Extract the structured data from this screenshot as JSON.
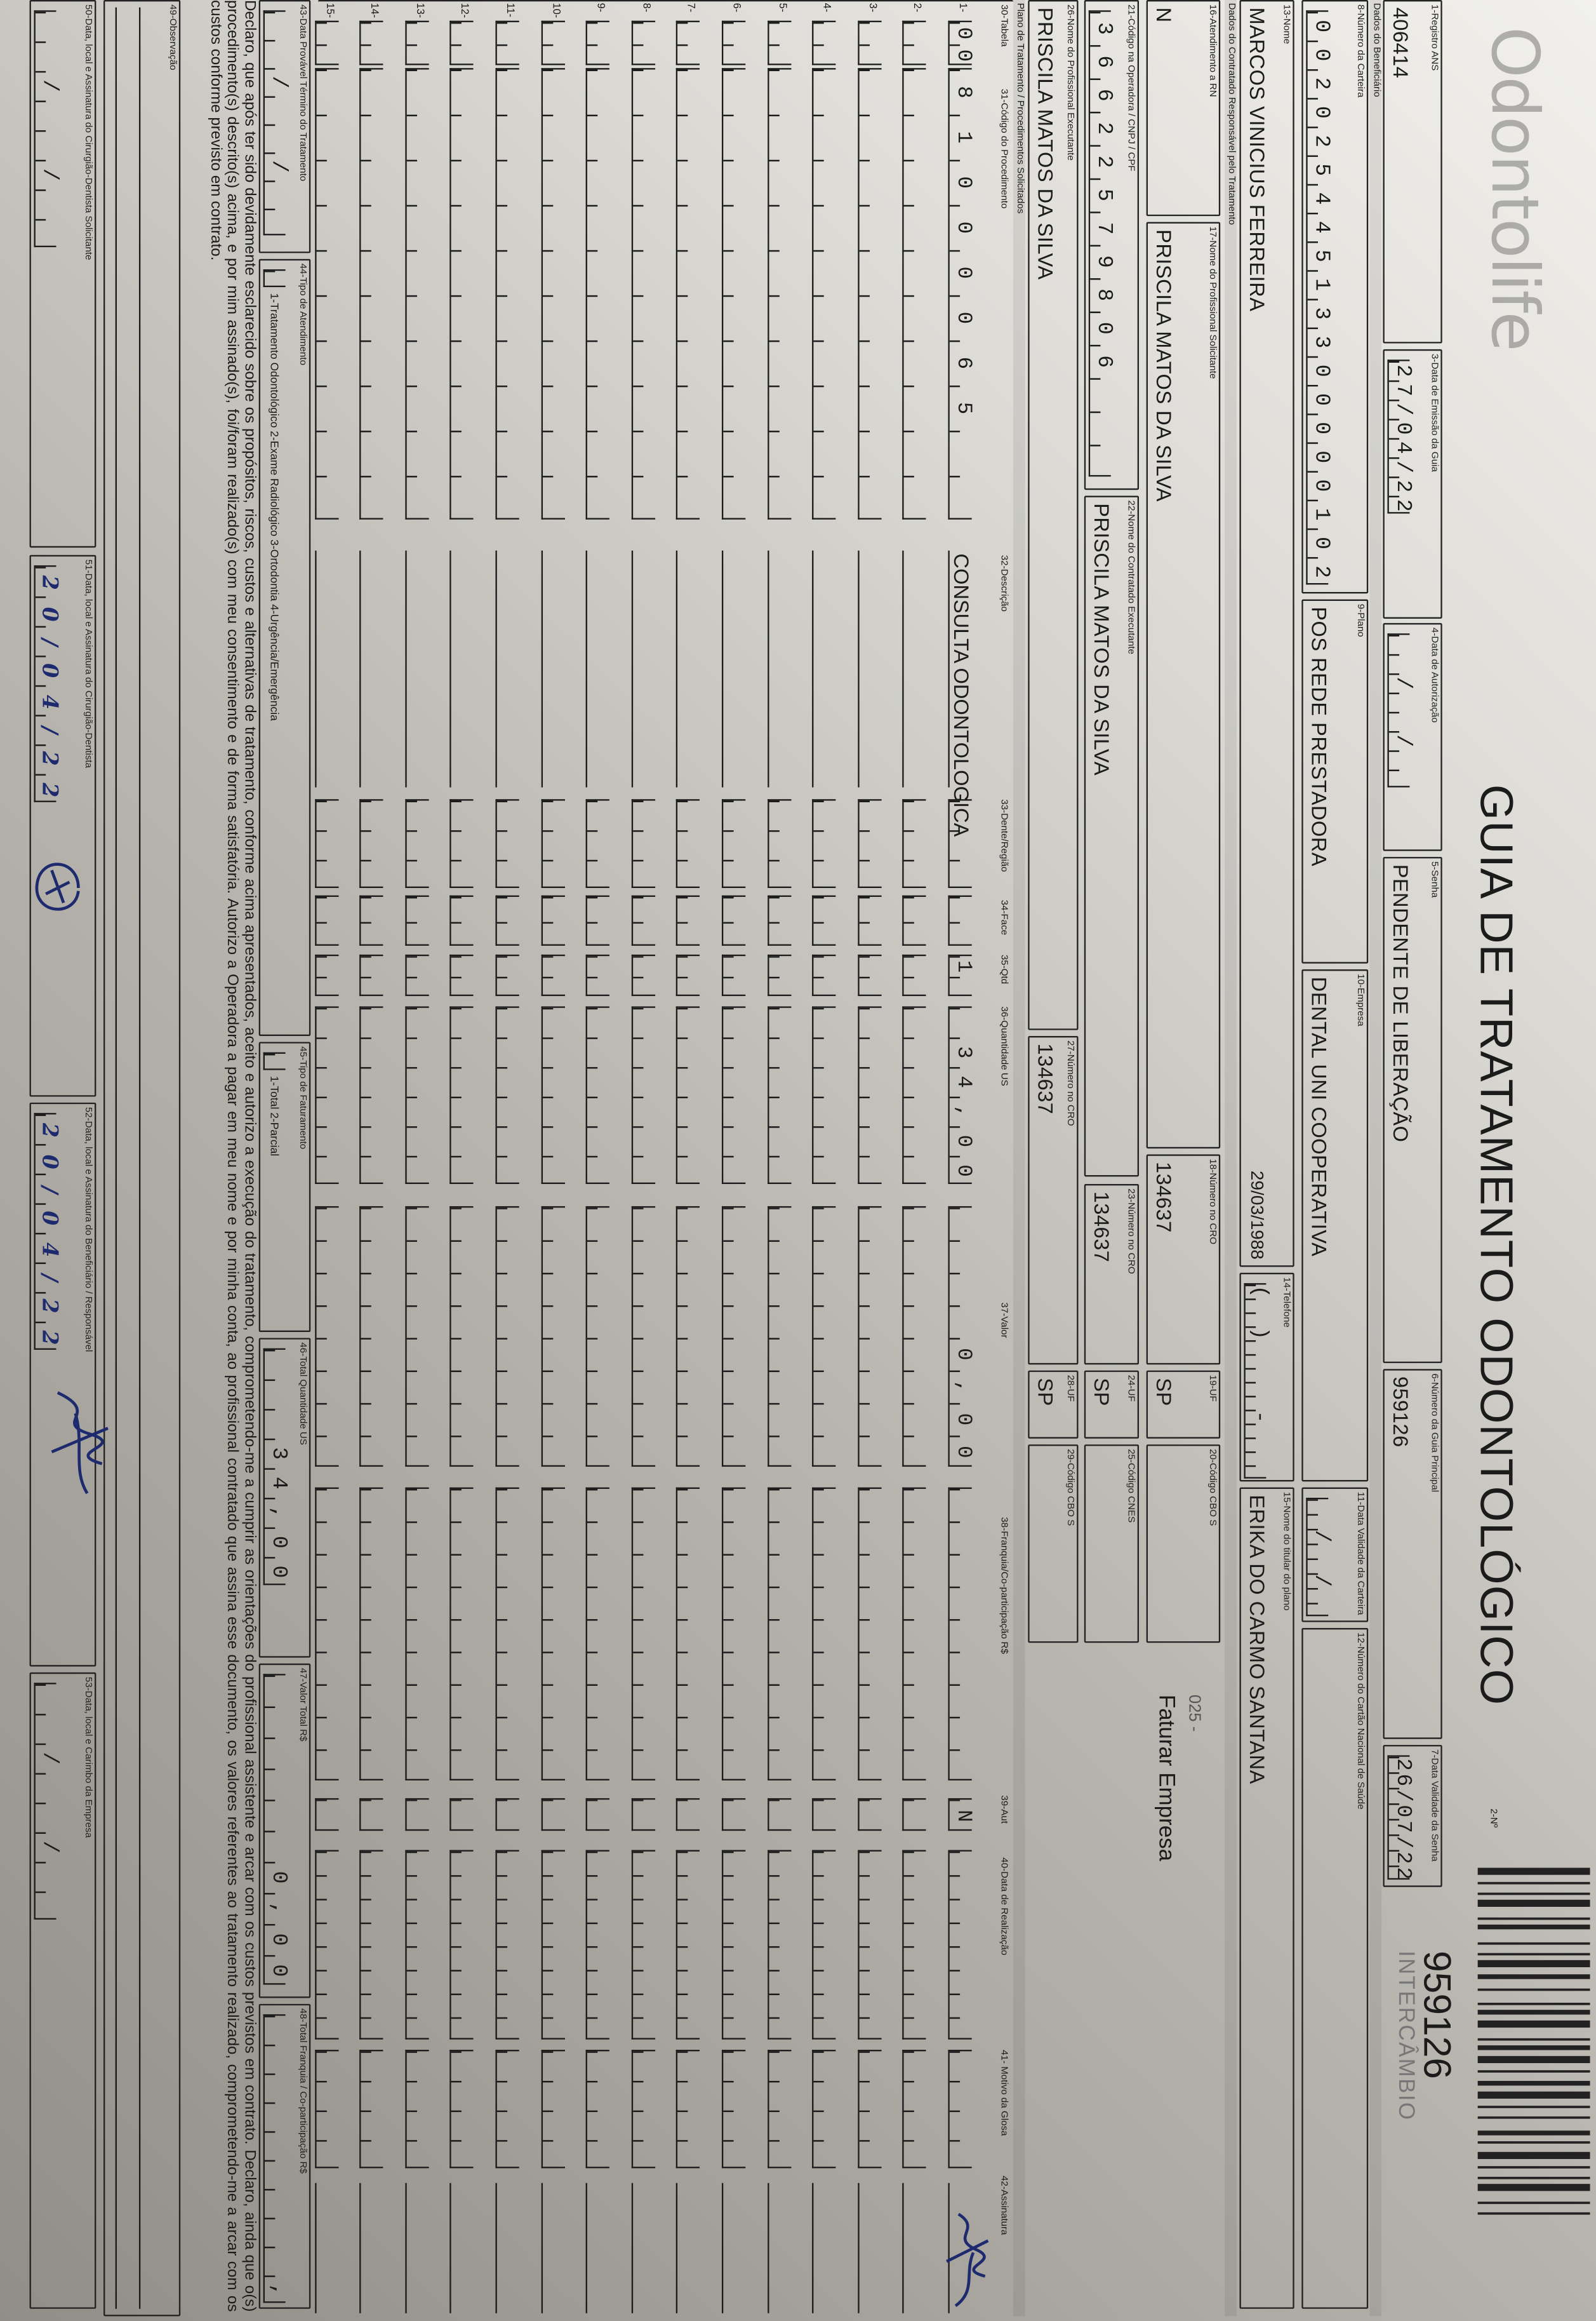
{
  "logo": "Odontolife",
  "title": "GUIA DE TRATAMENTO ODONTOLÓGICO",
  "guide_number_label": "2-Nº",
  "guide_number": "959126",
  "guide_type": "INTERCÂMBIO",
  "sections": {
    "beneficiary": "Dados do Beneficiário",
    "contractor": "Dados do Contratado Responsável pelo Tratamento",
    "plan": "Plano de Tratamento / Procedimentos Solicitados"
  },
  "fields": {
    "f1": {
      "label": "1-Registro ANS",
      "value": "406414"
    },
    "f3": {
      "label": "3-Data de Emissão da Guia",
      "value": "27/04/22"
    },
    "f4": {
      "label": "4-Data de Autorização",
      "value": "  /  /  "
    },
    "f5": {
      "label": "5-Senha",
      "value": "PENDENTE DE LIBERAÇÃO"
    },
    "f6": {
      "label": "6-Número da Guia Principal",
      "value": "959126"
    },
    "f7": {
      "label": "7-Data Validade da Senha",
      "value": "26/07/22"
    },
    "f8": {
      "label": "8-Número da Carteira",
      "value": "00202544513300000102"
    },
    "f9": {
      "label": "9-Plano",
      "value": "POS REDE PRESTADORA"
    },
    "f10": {
      "label": "10-Empresa",
      "value": "DENTAL UNI  COOPERATIVA"
    },
    "f11": {
      "label": "11-Data Validade da Carteira",
      "value": "  /  /  "
    },
    "f12": {
      "label": "12-Número do Cartão Nacional de Saúde",
      "value": ""
    },
    "f13": {
      "label": "13-Nome",
      "value": "MARCOS VINICIUS FERREIRA",
      "birth": "29/03/1988"
    },
    "f14": {
      "label": "14-Telefone",
      "value": "(  )     -    "
    },
    "f15": {
      "label": "15-Nome do titular do plano",
      "value": "ERIKA DO CARMO SANTANA"
    },
    "f16": {
      "label": "16-Atendimento a RN",
      "value": "N"
    },
    "f17": {
      "label": "17-Nome do Profissional Solicitante",
      "value": "PRISCILA MATOS DA SILVA"
    },
    "f18": {
      "label": "18-Número no CRO",
      "value": "134637"
    },
    "f19": {
      "label": "19-UF",
      "value": "SP"
    },
    "f20": {
      "label": "20-Código CBO S",
      "value": ""
    },
    "f21": {
      "label": "21-Código na Operadora / CNPJ / CPF",
      "value": "36622579806"
    },
    "f22": {
      "label": "22-Nome do Contratado Executante",
      "value": "PRISCILA MATOS DA SILVA"
    },
    "f23": {
      "label": "23-Número no CRO",
      "value": "134637"
    },
    "f24": {
      "label": "24-UF",
      "value": "SP"
    },
    "f25": {
      "label": "25-Código CNES",
      "value": ""
    },
    "f26": {
      "label": "26-Nome do Profissional Executante",
      "value": "PRISCILA MATOS DA SILVA"
    },
    "f27": {
      "label": "27-Número no CRO",
      "value": "134637"
    },
    "f28": {
      "label": "28-UF",
      "value": "SP"
    },
    "f29": {
      "label": "29-Código CBO S",
      "value": ""
    },
    "f43": {
      "label": "43-Data Provável Término do Tratamento",
      "value": "  /  /  "
    },
    "f44": {
      "label": "44-Tipo de Atendimento",
      "value": "",
      "options": "1-Tratamento Odontológico  2-Exame Radiológico  3-Ortodontia  4-Urgência/Emergência"
    },
    "f45": {
      "label": "45-Tipo de Faturamento",
      "value": "",
      "options": "1-Total  2-Parcial"
    },
    "f46": {
      "label": "46-Total Quantidade US",
      "value": "34,00"
    },
    "f47": {
      "label": "47-Valor Total R$",
      "value": "0,00"
    },
    "f48": {
      "label": "48-Total Franquia / Co-participação R$",
      "value": ","
    },
    "f49": {
      "label": "49-Observação",
      "value": ""
    },
    "f50": {
      "label": "50-Data, local e Assinatura do Cirurgião-Dentista Solicitante",
      "value": "  /  /  "
    },
    "f51": {
      "label": "51-Data, local e Assinatura do Cirurgião-Dentista",
      "value": "20/04/22"
    },
    "f52": {
      "label": "52-Data, local e Assinatura do Beneficiário / Responsável",
      "value": "20/04/22"
    },
    "f53": {
      "label": "53-Data, local e Carimbo da Empresa",
      "value": "  /  /  "
    }
  },
  "note": {
    "code": "025 -",
    "text": "Faturar Empresa"
  },
  "table": {
    "headers": {
      "tabela": "30-Tabela",
      "codigo": "31-Código do Procedimento",
      "descricao": "32-Descrição",
      "dente": "33-Dente/Região",
      "face": "34-Face",
      "qtd": "35-Qtd",
      "qtd_us": "36-Quantidade US",
      "valor": "37-Valor",
      "franquia": "38-Franquia/Co-participação R$",
      "aut": "39-Aut",
      "data": "40-Data de Realização",
      "motivo": "41- Motivo da Glosa",
      "assinatura": "42-Assinatura"
    },
    "rows": [
      {
        "n": "1-",
        "tabela": "00",
        "codigo": "81000065",
        "descricao": "CONSULTA ODONTOLOGICA",
        "qtd": "1",
        "qtd_us": "34,00",
        "valor": "0,00",
        "aut": "N",
        "signed": true
      },
      {
        "n": "2-"
      },
      {
        "n": "3-"
      },
      {
        "n": "4-"
      },
      {
        "n": "5-"
      },
      {
        "n": "6-"
      },
      {
        "n": "7-"
      },
      {
        "n": "8-"
      },
      {
        "n": "9-"
      },
      {
        "n": "10-"
      },
      {
        "n": "11-"
      },
      {
        "n": "12-"
      },
      {
        "n": "13-"
      },
      {
        "n": "14-"
      },
      {
        "n": "15-"
      }
    ]
  },
  "declaration": "Declaro, que após ter sido devidamente esclarecido sobre os propósitos, riscos, custos e alternativas de tratamento, conforme acima apresentados, aceito e autorizo a execução do tratamento, comprometendo-me a cumprir as orientações do profissional assistente e arcar com os custos previstos em contrato. Declaro, ainda que o(s) procedimento(s) descrito(s) acima, e por mim assinado(s), foi/foram realizado(s) com meu consentimento e de forma satisfatória. Autorizo a Operadora a pagar em meu nome e por minha conta, ao profissional contratado que assina esse documento, os valores referentes ao tratamento realizado, comprometendo-me a arcar com os custos conforme previsto em contrato.",
  "colors": {
    "ink": "#1b1b1b",
    "handwriting": "#1d2a6e",
    "paper_light": "#f1f0ec",
    "paper_shadow": "#918e87"
  }
}
